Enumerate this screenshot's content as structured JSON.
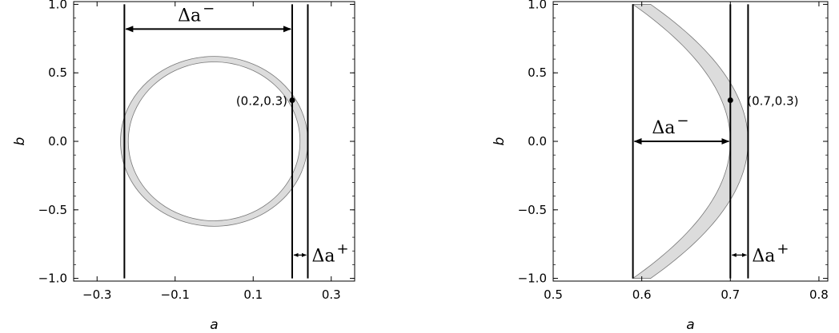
{
  "chart_data": [
    {
      "type": "region",
      "title": "",
      "xlabel": "a",
      "ylabel": "b",
      "xlim": [
        -0.36,
        0.36
      ],
      "ylim": [
        -1.02,
        1.02
      ],
      "x_ticks": [
        -0.3,
        -0.1,
        0.1,
        0.3
      ],
      "x_tick_labels": [
        "−0.3",
        "−0.1",
        "0.1",
        "0.3"
      ],
      "y_ticks": [
        1.0,
        0.5,
        0.0,
        -0.5,
        -1.0
      ],
      "y_tick_labels": [
        "1.0",
        "0.5",
        "0.0",
        "−0.5",
        "−1.0"
      ],
      "region": {
        "shape": "annulus",
        "center": [
          0,
          0
        ],
        "radius_outer_a": 0.24,
        "radius_inner_a": 0.22,
        "radius_outer_b": 0.62,
        "radius_inner_b": 0.58,
        "fill": "#dcdcdc"
      },
      "vertical_lines": [
        -0.23,
        0.2,
        0.24
      ],
      "line_ymin": -1.0,
      "line_ymax": 1.0,
      "point": {
        "x": 0.2,
        "y": 0.3,
        "label": "(0.2,0.3)"
      },
      "delta_minus": {
        "from": -0.23,
        "to": 0.2,
        "y": 0.82,
        "label": "Δa",
        "sup": "−"
      },
      "delta_plus": {
        "from": 0.2,
        "to": 0.24,
        "y": -0.83,
        "label": "Δa",
        "sup": "+"
      }
    },
    {
      "type": "region",
      "title": "",
      "xlabel": "a",
      "ylabel": "b",
      "xlim": [
        0.5,
        0.81
      ],
      "ylim": [
        -1.02,
        1.02
      ],
      "x_ticks": [
        0.5,
        0.6,
        0.7,
        0.8
      ],
      "x_tick_labels": [
        "0.5",
        "0.6",
        "0.7",
        "0.8"
      ],
      "y_ticks": [
        1.0,
        0.5,
        0.0,
        -0.5,
        -1.0
      ],
      "y_tick_labels": [
        "1.0",
        "0.5",
        "0.0",
        "−0.5",
        "−1.0"
      ],
      "region": {
        "shape": "crescent",
        "left_x": 0.59,
        "outer_vertex": 0.72,
        "inner_vertex": 0.7,
        "outer_top": 0.61,
        "inner_top": 0.59,
        "fill": "#dcdcdc"
      },
      "vertical_lines": [
        0.59,
        0.7,
        0.72
      ],
      "line_ymin": -1.0,
      "line_ymax": 1.0,
      "point": {
        "x": 0.7,
        "y": 0.3,
        "label": "(0.7,0.3)"
      },
      "delta_minus": {
        "from": 0.59,
        "to": 0.7,
        "y": 0.0,
        "label": "Δa",
        "sup": "−"
      },
      "delta_plus": {
        "from": 0.7,
        "to": 0.72,
        "y": -0.83,
        "label": "Δa",
        "sup": "+"
      }
    }
  ]
}
